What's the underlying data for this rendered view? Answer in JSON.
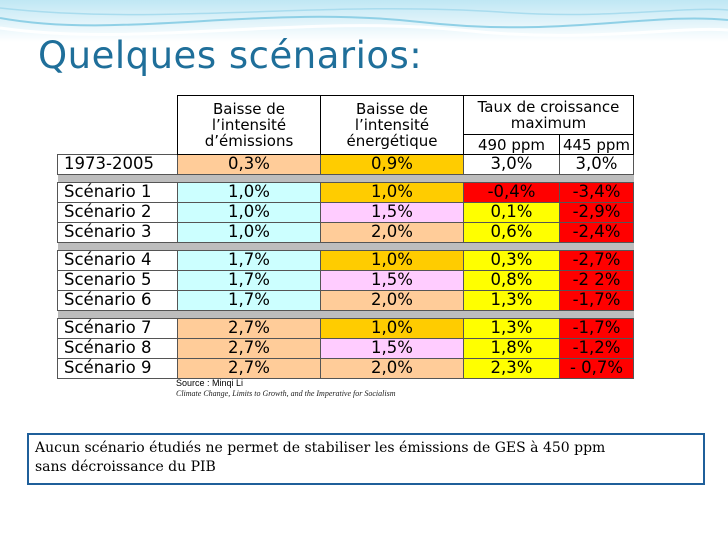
{
  "slide": {
    "title": "Quelques scénarios:",
    "accent_color": "#1f6f9a"
  },
  "table": {
    "headers": {
      "col_emissions": [
        "Baisse de",
        "l’intensité",
        "d’émissions"
      ],
      "col_energetique": [
        "Baisse de",
        "l’intensité",
        "énergétique"
      ],
      "col_growth": [
        "Taux de croissance",
        "maximum"
      ],
      "col_490": "490 ppm",
      "col_445": "445 ppm"
    },
    "groups": [
      [
        {
          "label": "1973-2005",
          "emissions": "0,3%",
          "energetique": "0,9%",
          "ppm490": "3,0%",
          "ppm445": "3,0%",
          "colors": [
            "bw",
            "bo",
            "by",
            "bw",
            "bw"
          ]
        }
      ],
      [
        {
          "label": "Scénario 1",
          "emissions": "1,0%",
          "energetique": "1,0%",
          "ppm490": "-0,4%",
          "ppm445": "-3,4%",
          "colors": [
            "bw",
            "bc",
            "by",
            "br",
            "br"
          ]
        },
        {
          "label": "Scénario 2",
          "emissions": "1,0%",
          "energetique": "1,5%",
          "ppm490": "0,1%",
          "ppm445": "-2,9%",
          "colors": [
            "bw",
            "bc",
            "bp",
            "bl",
            "br"
          ]
        },
        {
          "label": "Scénario 3",
          "emissions": "1,0%",
          "energetique": "2,0%",
          "ppm490": "0,6%",
          "ppm445": "-2,4%",
          "colors": [
            "bw",
            "bc",
            "bo",
            "bl",
            "br"
          ]
        }
      ],
      [
        {
          "label": "Scénario 4",
          "emissions": "1,7%",
          "energetique": "1,0%",
          "ppm490": "0,3%",
          "ppm445": "-2,7%",
          "colors": [
            "bw",
            "bc",
            "by",
            "bl",
            "br"
          ]
        },
        {
          "label": "Scenario 5",
          "emissions": "1,7%",
          "energetique": "1,5%",
          "ppm490": "0,8%",
          "ppm445": "-2 2%",
          "colors": [
            "bw",
            "bc",
            "bp",
            "bl",
            "br"
          ]
        },
        {
          "label": "Scénario 6",
          "emissions": "1,7%",
          "energetique": "2,0%",
          "ppm490": "1,3%",
          "ppm445": "-1,7%",
          "colors": [
            "bw",
            "bc",
            "bo",
            "bl",
            "br"
          ]
        }
      ],
      [
        {
          "label": "Scénario 7",
          "emissions": "2,7%",
          "energetique": "1,0%",
          "ppm490": "1,3%",
          "ppm445": "-1,7%",
          "colors": [
            "bw",
            "bo",
            "by",
            "bl",
            "br"
          ]
        },
        {
          "label": "Scénario 8",
          "emissions": "2,7%",
          "energetique": "1,5%",
          "ppm490": "1,8%",
          "ppm445": "-1,2%",
          "colors": [
            "bw",
            "bo",
            "bp",
            "bl",
            "br"
          ]
        },
        {
          "label": "Scénario 9",
          "emissions": "2,7%",
          "energetique": "2,0%",
          "ppm490": "2,3%",
          "ppm445": "- 0,7%",
          "colors": [
            "bw",
            "bo",
            "bo",
            "bl",
            "br"
          ]
        }
      ]
    ]
  },
  "source": {
    "line1": "Source  : Minqi Li",
    "line2": "Climate Change, Limits to Growth, and the Imperative for Socialism"
  },
  "note": {
    "line1": "Aucun scénario étudiés ne permet de stabiliser les émissions de GES à 450  ppm",
    "line2": "sans  décroissance du PIB"
  }
}
